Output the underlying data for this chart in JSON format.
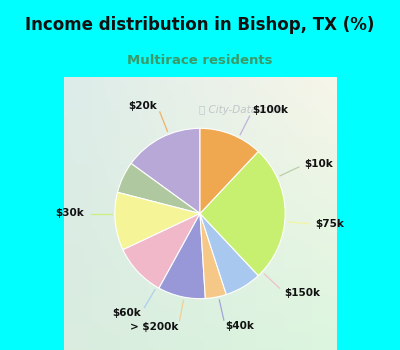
{
  "title": "Income distribution in Bishop, TX (%)",
  "subtitle": "Multirace residents",
  "title_color": "#111111",
  "subtitle_color": "#3a9a6a",
  "watermark": "City-Data.com",
  "background_cyan": "#00ffff",
  "background_chart": "#d8f0e8",
  "labels": [
    "$100k",
    "$10k",
    "$75k",
    "$150k",
    "$40k",
    "> $200k",
    "$60k",
    "$30k",
    "$20k"
  ],
  "values": [
    15,
    6,
    11,
    10,
    9,
    4,
    7,
    26,
    12
  ],
  "colors": [
    "#b8a8d8",
    "#b0c8a0",
    "#f5f598",
    "#f0b8c8",
    "#9898d8",
    "#f5c888",
    "#a8c8f0",
    "#c8f070",
    "#f0a850"
  ],
  "startangle": 90,
  "figsize": [
    4.0,
    3.5
  ],
  "dpi": 100
}
